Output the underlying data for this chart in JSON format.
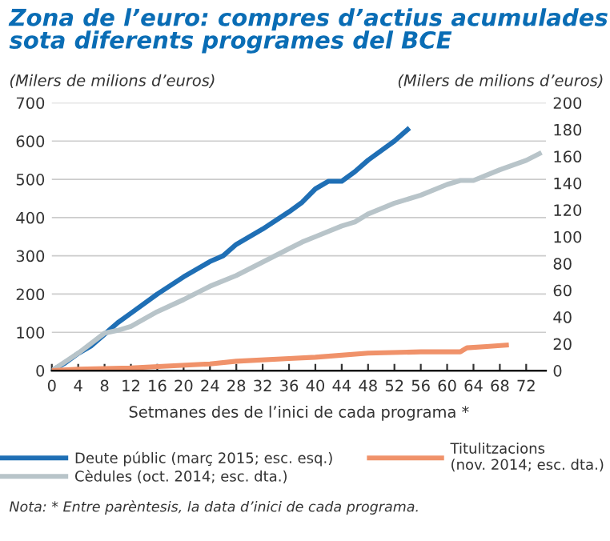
{
  "chart_data": {
    "type": "line",
    "title": "Zona de l’euro: compres d’actius acumulades\nsota diferents programes del BCE",
    "ylabel": "(Milers de milions d’euros)",
    "y2label": "(Milers de milions d’euros)",
    "xlabel": "Setmanes des de l’inici de cada programa *",
    "annotations": [
      "Nota: * Entre parèntesis, la data d’inici de cada programa."
    ],
    "series": [
      {
        "name": "Deute públic (març 2015; esc. esq.)",
        "color": "#1f6fb5",
        "x": [
          0,
          2,
          4,
          6,
          8,
          10,
          12,
          16,
          20,
          24,
          26,
          28,
          32,
          36,
          38,
          40,
          42,
          44,
          46,
          48,
          52,
          54
        ],
        "values": [
          0,
          20,
          45,
          65,
          95,
          125,
          150,
          200,
          245,
          285,
          300,
          330,
          370,
          415,
          440,
          475,
          495,
          495,
          520,
          550,
          600,
          630
        ]
      },
      {
        "name": "Cèdules (oct. 2014; esc. dta.)",
        "color": "#b8c4c9",
        "axis": "y2",
        "x": [
          0,
          4,
          8,
          10,
          12,
          16,
          20,
          24,
          28,
          32,
          36,
          38,
          40,
          44,
          46,
          48,
          52,
          56,
          60,
          62,
          64,
          68,
          72,
          74
        ],
        "values": [
          0,
          13,
          28,
          30,
          33,
          44,
          53,
          63,
          71,
          81,
          91,
          96,
          100,
          108,
          111,
          117,
          125,
          131,
          139,
          142,
          142,
          150,
          157,
          162
        ]
      },
      {
        "name": "Titulitzacions\n(nov. 2014; esc. dta.)",
        "color": "#f0926a",
        "axis": "y2",
        "x": [
          0,
          4,
          12,
          24,
          28,
          36,
          40,
          48,
          56,
          60,
          62,
          63,
          66,
          69
        ],
        "values": [
          0,
          1,
          2,
          5,
          7,
          9,
          10,
          13,
          14,
          14,
          14,
          17,
          18,
          19
        ]
      }
    ],
    "xlim": [
      0,
      75
    ],
    "xticks": [
      0,
      4,
      8,
      12,
      16,
      20,
      24,
      28,
      32,
      36,
      40,
      44,
      48,
      52,
      56,
      60,
      64,
      68,
      72
    ],
    "ylim": [
      0,
      700
    ],
    "yticks": [
      0,
      100,
      200,
      300,
      400,
      500,
      600,
      700
    ],
    "y2lim": [
      0,
      200
    ],
    "y2ticks": [
      0,
      20,
      40,
      60,
      80,
      100,
      120,
      140,
      160,
      180,
      200
    ],
    "grid": "y",
    "legend": "bottom",
    "marker": "none",
    "line_style": "solid"
  }
}
